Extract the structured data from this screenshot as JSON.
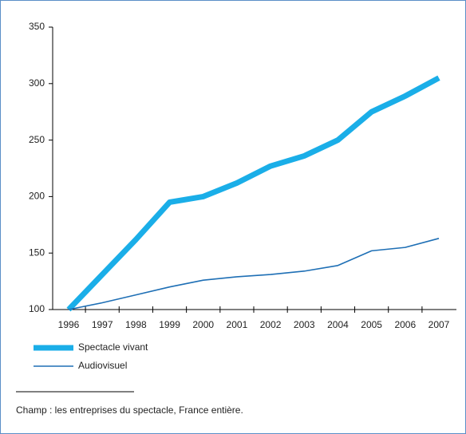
{
  "chart_data": {
    "type": "line",
    "categories": [
      "1996",
      "1997",
      "1998",
      "1999",
      "2000",
      "2001",
      "2002",
      "2003",
      "2004",
      "2005",
      "2006",
      "2007"
    ],
    "series": [
      {
        "name": "Spectacle vivant",
        "color": "#1aaee8",
        "values": [
          100,
          131,
          162,
          195,
          200,
          212,
          227,
          236,
          250,
          275,
          289,
          305
        ]
      },
      {
        "name": "Audiovisuel",
        "color": "#1e6fb5",
        "values": [
          100,
          106,
          113,
          120,
          126,
          129,
          131,
          134,
          139,
          152,
          155,
          163
        ]
      }
    ],
    "ylim": [
      100,
      350
    ],
    "yticks": [
      100,
      150,
      200,
      250,
      300,
      350
    ],
    "note": "Champ : les entreprises du spectacle, France entière."
  }
}
